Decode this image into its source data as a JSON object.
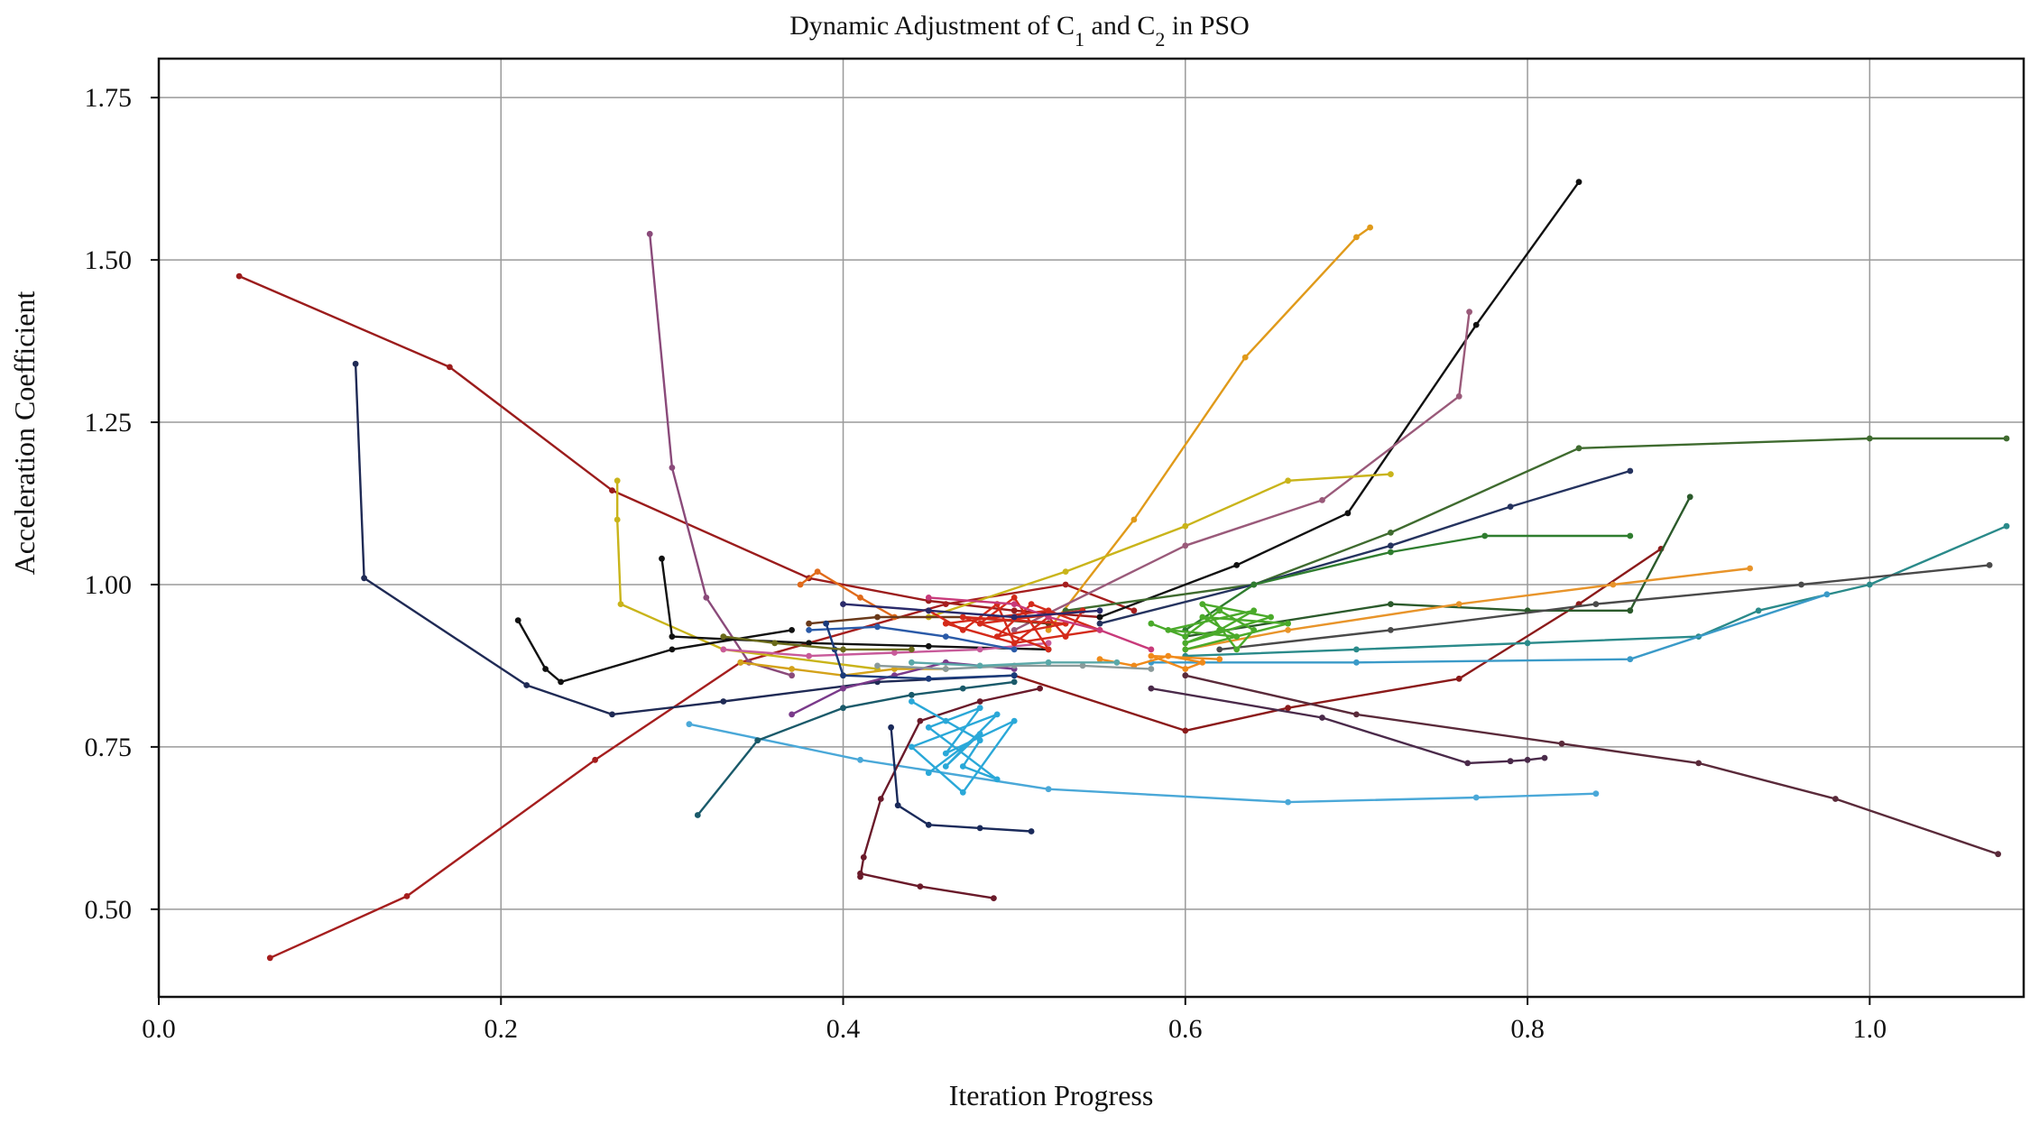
{
  "chart_data": {
    "type": "line",
    "title": "Dynamic Adjustment of C",
    "title_sub1": "1",
    "title_and": " and C",
    "title_sub2": "2",
    "title_suffix": " in PSO",
    "xlabel": "Iteration Progress",
    "ylabel": "Acceleration Coefficient",
    "xlim": [
      0.0,
      1.09
    ],
    "ylim": [
      0.365,
      1.81
    ],
    "grid": true,
    "xticks": [
      0.0,
      0.2,
      0.4,
      0.6,
      0.8,
      1.0
    ],
    "xtick_labels": [
      "0.0",
      "0.2",
      "0.4",
      "0.6",
      "0.8",
      "1.0"
    ],
    "yticks": [
      0.5,
      0.75,
      1.0,
      1.25,
      1.5,
      1.75
    ],
    "ytick_labels": [
      "0.50",
      "0.75",
      "1.00",
      "1.25",
      "1.50",
      "1.75"
    ],
    "series": [
      {
        "name": "series-red-descending",
        "color": "#9b1c1c",
        "x": [
          0.047,
          0.17,
          0.265,
          0.38,
          0.45,
          0.5,
          0.55
        ],
        "y": [
          1.475,
          1.335,
          1.145,
          1.01,
          0.975,
          0.96,
          0.95
        ]
      },
      {
        "name": "series-red-ascending",
        "color": "#a51e1e",
        "x": [
          0.065,
          0.145,
          0.255,
          0.34,
          0.46,
          0.53,
          0.57
        ],
        "y": [
          0.425,
          0.52,
          0.73,
          0.88,
          0.97,
          1.0,
          0.96
        ]
      },
      {
        "name": "series-dark-red",
        "color": "#8b1a1a",
        "x": [
          0.5,
          0.6,
          0.66,
          0.76,
          0.83,
          0.878
        ],
        "y": [
          0.86,
          0.775,
          0.81,
          0.855,
          0.97,
          1.055
        ]
      },
      {
        "name": "series-navy-left",
        "color": "#1f2a55",
        "x": [
          0.115,
          0.12,
          0.215,
          0.265,
          0.33,
          0.42,
          0.5
        ],
        "y": [
          1.34,
          1.01,
          0.845,
          0.8,
          0.82,
          0.85,
          0.86
        ]
      },
      {
        "name": "series-black-tall",
        "color": "#111111",
        "x": [
          0.55,
          0.63,
          0.695,
          0.77,
          0.83
        ],
        "y": [
          0.95,
          1.03,
          1.11,
          1.4,
          1.62
        ]
      },
      {
        "name": "series-orange-tall",
        "color": "#e09a1a",
        "x": [
          0.52,
          0.57,
          0.635,
          0.7,
          0.708
        ],
        "y": [
          0.93,
          1.1,
          1.35,
          1.535,
          1.55
        ]
      },
      {
        "name": "series-purple-top",
        "color": "#8a4a7a",
        "x": [
          0.287,
          0.3,
          0.32,
          0.345,
          0.37
        ],
        "y": [
          1.54,
          1.18,
          0.98,
          0.88,
          0.86
        ]
      },
      {
        "name": "series-mauve-right",
        "color": "#9a5a7a",
        "x": [
          0.5,
          0.6,
          0.68,
          0.76,
          0.766
        ],
        "y": [
          0.93,
          1.06,
          1.13,
          1.29,
          1.42
        ]
      },
      {
        "name": "series-olive",
        "color": "#3f6b2f",
        "x": [
          0.53,
          0.64,
          0.72,
          0.83,
          1.0,
          1.08
        ],
        "y": [
          0.96,
          1.0,
          1.08,
          1.21,
          1.225,
          1.225
        ]
      },
      {
        "name": "series-yellow-left",
        "color": "#c9b41a",
        "x": [
          0.268,
          0.268,
          0.27,
          0.33,
          0.42
        ],
        "y": [
          1.16,
          1.1,
          0.97,
          0.9,
          0.87
        ]
      },
      {
        "name": "series-yellow-top",
        "color": "#c9b41a",
        "x": [
          0.45,
          0.53,
          0.6,
          0.66,
          0.72
        ],
        "y": [
          0.95,
          1.02,
          1.09,
          1.16,
          1.17
        ]
      },
      {
        "name": "series-navy-right",
        "color": "#25335f",
        "x": [
          0.55,
          0.64,
          0.72,
          0.79,
          0.86
        ],
        "y": [
          0.94,
          1.0,
          1.06,
          1.12,
          1.175
        ]
      },
      {
        "name": "series-green-mid",
        "color": "#2f7d2f",
        "x": [
          0.6,
          0.64,
          0.72,
          0.775,
          0.86
        ],
        "y": [
          0.93,
          1.0,
          1.05,
          1.075,
          1.075
        ]
      },
      {
        "name": "series-darkgreen-right",
        "color": "#2b5a2b",
        "x": [
          0.6,
          0.72,
          0.8,
          0.86,
          0.895
        ],
        "y": [
          0.92,
          0.97,
          0.96,
          0.96,
          1.135
        ]
      },
      {
        "name": "series-orange-right",
        "color": "#e8942a",
        "x": [
          0.6,
          0.66,
          0.76,
          0.85,
          0.93
        ],
        "y": [
          0.9,
          0.93,
          0.97,
          1.0,
          1.025
        ]
      },
      {
        "name": "series-teal-right",
        "color": "#2a8a8a",
        "x": [
          0.6,
          0.7,
          0.8,
          0.9,
          0.935,
          1.0,
          1.08
        ],
        "y": [
          0.89,
          0.9,
          0.91,
          0.92,
          0.96,
          1.0,
          1.09
        ]
      },
      {
        "name": "series-gray-right",
        "color": "#4a4a4a",
        "x": [
          0.62,
          0.72,
          0.84,
          0.96,
          1.07
        ],
        "y": [
          0.9,
          0.93,
          0.97,
          1.0,
          1.03
        ]
      },
      {
        "name": "series-skyblue-right",
        "color": "#3a9ac8",
        "x": [
          0.58,
          0.7,
          0.86,
          0.975
        ],
        "y": [
          0.88,
          0.88,
          0.885,
          0.985
        ]
      },
      {
        "name": "series-brown-right",
        "color": "#5a2a3a",
        "x": [
          0.6,
          0.7,
          0.82,
          0.9,
          0.98,
          1.075
        ],
        "y": [
          0.86,
          0.8,
          0.755,
          0.725,
          0.67,
          0.585
        ]
      },
      {
        "name": "series-darkpurple-right",
        "color": "#4a2a4a",
        "x": [
          0.58,
          0.68,
          0.765,
          0.79,
          0.8,
          0.81
        ],
        "y": [
          0.84,
          0.795,
          0.725,
          0.728,
          0.73,
          0.733
        ]
      },
      {
        "name": "series-lightblue-bottom",
        "color": "#4aa8d8",
        "x": [
          0.31,
          0.41,
          0.52,
          0.66,
          0.77,
          0.84
        ],
        "y": [
          0.785,
          0.73,
          0.685,
          0.665,
          0.672,
          0.678
        ]
      },
      {
        "name": "series-darkred-bottom",
        "color": "#6a1a2a",
        "x": [
          0.41,
          0.412,
          0.422,
          0.445,
          0.48,
          0.515
        ],
        "y": [
          0.55,
          0.58,
          0.67,
          0.79,
          0.82,
          0.84
        ]
      },
      {
        "name": "series-darkred-bottom-tail",
        "color": "#6a1a2a",
        "x": [
          0.41,
          0.445,
          0.488
        ],
        "y": [
          0.555,
          0.535,
          0.517
        ]
      },
      {
        "name": "series-teal-bottom",
        "color": "#1a5a6a",
        "x": [
          0.315,
          0.35,
          0.4,
          0.44,
          0.47,
          0.5
        ],
        "y": [
          0.645,
          0.76,
          0.81,
          0.83,
          0.84,
          0.85
        ]
      },
      {
        "name": "series-navy-bottom",
        "color": "#1a2a5a",
        "x": [
          0.428,
          0.432,
          0.45,
          0.48,
          0.51
        ],
        "y": [
          0.78,
          0.66,
          0.63,
          0.625,
          0.62
        ]
      },
      {
        "name": "series-black-small",
        "color": "#111111",
        "x": [
          0.21,
          0.226,
          0.235,
          0.3,
          0.37
        ],
        "y": [
          0.945,
          0.87,
          0.85,
          0.9,
          0.93
        ]
      },
      {
        "name": "series-black-mid",
        "color": "#111111",
        "x": [
          0.294,
          0.3,
          0.38,
          0.45,
          0.52
        ],
        "y": [
          1.04,
          0.92,
          0.91,
          0.905,
          0.9
        ]
      },
      {
        "name": "series-pink",
        "color": "#c85a9a",
        "x": [
          0.33,
          0.38,
          0.43,
          0.48,
          0.52
        ],
        "y": [
          0.9,
          0.89,
          0.895,
          0.9,
          0.91
        ]
      },
      {
        "name": "series-gold-left",
        "color": "#d4a21a",
        "x": [
          0.34,
          0.37,
          0.4,
          0.43,
          0.46
        ],
        "y": [
          0.88,
          0.87,
          0.86,
          0.87,
          0.87
        ]
      },
      {
        "name": "series-orange-left",
        "color": "#e06a1a",
        "x": [
          0.375,
          0.385,
          0.41,
          0.43
        ],
        "y": [
          1.0,
          1.02,
          0.98,
          0.95
        ]
      },
      {
        "name": "series-brown-mid",
        "color": "#6a3a1a",
        "x": [
          0.38,
          0.42,
          0.47,
          0.52
        ],
        "y": [
          0.94,
          0.95,
          0.95,
          0.94
        ]
      },
      {
        "name": "series-purple-mid",
        "color": "#7a3a8a",
        "x": [
          0.37,
          0.4,
          0.43,
          0.46,
          0.5
        ],
        "y": [
          0.8,
          0.84,
          0.86,
          0.88,
          0.87
        ]
      },
      {
        "name": "series-blue-mid",
        "color": "#2a5aa8",
        "x": [
          0.38,
          0.42,
          0.46,
          0.5
        ],
        "y": [
          0.93,
          0.935,
          0.92,
          0.9
        ]
      },
      {
        "name": "series-darkblue-loop",
        "color": "#1a3a7a",
        "x": [
          0.39,
          0.395,
          0.4,
          0.45,
          0.5
        ],
        "y": [
          0.94,
          0.9,
          0.86,
          0.855,
          0.86
        ]
      },
      {
        "name": "series-olive-small",
        "color": "#6a6a1a",
        "x": [
          0.33,
          0.36,
          0.4,
          0.44
        ],
        "y": [
          0.92,
          0.91,
          0.9,
          0.9
        ]
      },
      {
        "name": "series-red-cluster",
        "color": "#d42a1a",
        "x": [
          0.45,
          0.47,
          0.49,
          0.5,
          0.52,
          0.53,
          0.54,
          0.48,
          0.5,
          0.52,
          0.47,
          0.53,
          0.49,
          0.51,
          0.55,
          0.5,
          0.46,
          0.52
        ],
        "y": [
          0.96,
          0.93,
          0.97,
          0.91,
          0.95,
          0.92,
          0.96,
          0.94,
          0.98,
          0.9,
          0.95,
          0.94,
          0.92,
          0.97,
          0.93,
          0.91,
          0.94,
          0.96
        ]
      },
      {
        "name": "series-green-cluster",
        "color": "#4aaa2a",
        "x": [
          0.58,
          0.6,
          0.62,
          0.64,
          0.63,
          0.61,
          0.65,
          0.6,
          0.62,
          0.64,
          0.59,
          0.63,
          0.61,
          0.66,
          0.6
        ],
        "y": [
          0.94,
          0.92,
          0.96,
          0.93,
          0.9,
          0.97,
          0.95,
          0.91,
          0.93,
          0.96,
          0.93,
          0.92,
          0.95,
          0.94,
          0.9
        ]
      },
      {
        "name": "series-cyan-cluster",
        "color": "#2aa8d8",
        "x": [
          0.44,
          0.46,
          0.48,
          0.47,
          0.49,
          0.45,
          0.48,
          0.46,
          0.5,
          0.47,
          0.44,
          0.49,
          0.46,
          0.48,
          0.45
        ],
        "y": [
          0.82,
          0.79,
          0.76,
          0.72,
          0.7,
          0.78,
          0.81,
          0.74,
          0.79,
          0.68,
          0.75,
          0.8,
          0.72,
          0.77,
          0.71
        ]
      },
      {
        "name": "series-orange-cluster",
        "color": "#f08a1a",
        "x": [
          0.55,
          0.57,
          0.59,
          0.61,
          0.6,
          0.58,
          0.62
        ],
        "y": [
          0.885,
          0.875,
          0.89,
          0.88,
          0.87,
          0.89,
          0.885
        ]
      },
      {
        "name": "series-gray-band",
        "color": "#8a9a9a",
        "x": [
          0.42,
          0.46,
          0.5,
          0.54,
          0.58
        ],
        "y": [
          0.875,
          0.87,
          0.875,
          0.875,
          0.87
        ]
      },
      {
        "name": "series-teal-band",
        "color": "#5aa8a8",
        "x": [
          0.44,
          0.48,
          0.52,
          0.56
        ],
        "y": [
          0.88,
          0.875,
          0.88,
          0.88
        ]
      },
      {
        "name": "series-magenta",
        "color": "#c83a7a",
        "x": [
          0.45,
          0.5,
          0.52,
          0.55,
          0.58
        ],
        "y": [
          0.98,
          0.97,
          0.95,
          0.93,
          0.9
        ]
      },
      {
        "name": "series-navy-center",
        "color": "#2a2a6a",
        "x": [
          0.4,
          0.45,
          0.5,
          0.55
        ],
        "y": [
          0.97,
          0.96,
          0.95,
          0.96
        ]
      }
    ]
  }
}
